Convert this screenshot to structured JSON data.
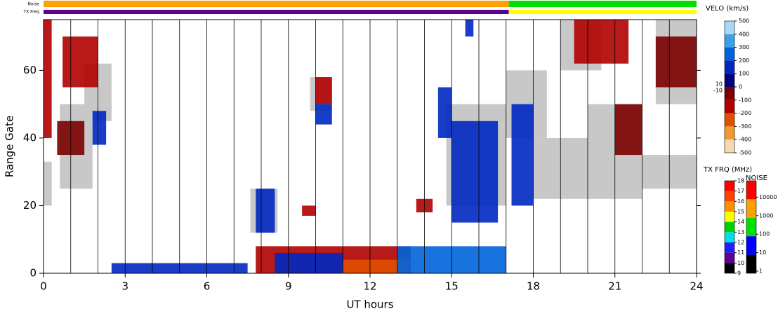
{
  "chart_data": {
    "type": "range-time",
    "xlabel": "UT hours",
    "ylabel": "Range Gate",
    "xlim": [
      0,
      24
    ],
    "ylim": [
      0,
      75
    ],
    "xticks": [
      0,
      3,
      6,
      9,
      12,
      15,
      18,
      21,
      24
    ],
    "yticks": [
      0,
      20,
      40,
      60
    ],
    "xgrid": [
      1,
      2,
      3,
      4,
      5,
      6,
      7,
      8,
      9,
      10,
      11,
      12,
      13,
      14,
      15,
      16,
      17,
      18,
      19,
      20,
      21,
      22,
      23
    ],
    "ground_scatter_color": "#c8c8c8",
    "ground_scatter": [
      {
        "t": [
          0,
          0.3
        ],
        "gate": [
          20,
          33
        ]
      },
      {
        "t": [
          0.6,
          1.8
        ],
        "gate": [
          25,
          50
        ]
      },
      {
        "t": [
          1.5,
          2.5
        ],
        "gate": [
          45,
          62
        ]
      },
      {
        "t": [
          7.6,
          8.6
        ],
        "gate": [
          12,
          25
        ]
      },
      {
        "t": [
          9.8,
          10.6
        ],
        "gate": [
          48,
          58
        ]
      },
      {
        "t": [
          14.8,
          17
        ],
        "gate": [
          20,
          50
        ]
      },
      {
        "t": [
          17,
          18.5
        ],
        "gate": [
          40,
          60
        ]
      },
      {
        "t": [
          18,
          22
        ],
        "gate": [
          22,
          40
        ]
      },
      {
        "t": [
          19,
          20.5
        ],
        "gate": [
          60,
          75
        ]
      },
      {
        "t": [
          20,
          22
        ],
        "gate": [
          30,
          50
        ]
      },
      {
        "t": [
          22,
          24
        ],
        "gate": [
          25,
          35
        ]
      },
      {
        "t": [
          22.5,
          24
        ],
        "gate": [
          50,
          75
        ]
      }
    ],
    "cells": [
      {
        "t": [
          0,
          0.3
        ],
        "gate": [
          40,
          75
        ],
        "v": -150
      },
      {
        "t": [
          0.7,
          2
        ],
        "gate": [
          55,
          70
        ],
        "v": -200
      },
      {
        "t": [
          0.5,
          1.5
        ],
        "gate": [
          35,
          45
        ],
        "v": -100
      },
      {
        "t": [
          7.8,
          13.5
        ],
        "gate": [
          0,
          8
        ],
        "v": -150
      },
      {
        "t": [
          11,
          13.5
        ],
        "gate": [
          0,
          4
        ],
        "v": -250
      },
      {
        "t": [
          9.5,
          10
        ],
        "gate": [
          17,
          20
        ],
        "v": -200
      },
      {
        "t": [
          13.7,
          14.3
        ],
        "gate": [
          18,
          22
        ],
        "v": -150
      },
      {
        "t": [
          21,
          22
        ],
        "gate": [
          35,
          50
        ],
        "v": -100
      },
      {
        "t": [
          22.5,
          24
        ],
        "gate": [
          55,
          70
        ],
        "v": -100
      },
      {
        "t": [
          19.5,
          21.5
        ],
        "gate": [
          62,
          75
        ],
        "v": -150
      },
      {
        "t": [
          10,
          10.6
        ],
        "gate": [
          50,
          58
        ],
        "v": -120
      },
      {
        "t": [
          1.8,
          2.3
        ],
        "gate": [
          38,
          48
        ],
        "v": 150
      },
      {
        "t": [
          2.5,
          7.5
        ],
        "gate": [
          0,
          3
        ],
        "v": 150
      },
      {
        "t": [
          8.5,
          11
        ],
        "gate": [
          0,
          6
        ],
        "v": 120
      },
      {
        "t": [
          13,
          17
        ],
        "gate": [
          0,
          8
        ],
        "v": 200
      },
      {
        "t": [
          15,
          16.7
        ],
        "gate": [
          15,
          45
        ],
        "v": 150
      },
      {
        "t": [
          17.2,
          18
        ],
        "gate": [
          20,
          50
        ],
        "v": 100
      },
      {
        "t": [
          14.5,
          15
        ],
        "gate": [
          40,
          55
        ],
        "v": 100
      },
      {
        "t": [
          10,
          10.6
        ],
        "gate": [
          44,
          50
        ],
        "v": 150
      },
      {
        "t": [
          7.8,
          8.5
        ],
        "gate": [
          12,
          25
        ],
        "v": 100
      },
      {
        "t": [
          15.5,
          15.8
        ],
        "gate": [
          70,
          75
        ],
        "v": 150
      }
    ],
    "velo_title": "VELO (km/s)",
    "velo_ticks": [
      500,
      400,
      300,
      200,
      100,
      0,
      -100,
      -200,
      -300,
      -400,
      -500
    ],
    "velo_colors": [
      "#a8d8f5",
      "#3aa0e8",
      "#0064dc",
      "#0028c0",
      "#000080",
      "#7a0000",
      "#b00000",
      "#e05000",
      "#f09a30",
      "#f8d8b0"
    ],
    "velo_side_ticks": [
      10,
      -10
    ],
    "freq_title": "TX FRQ (MHz)",
    "freq_ticks": [
      18,
      17,
      16,
      15,
      14,
      13,
      12,
      11,
      10,
      9
    ],
    "freq_colors": [
      "#ff0000",
      "#ff4000",
      "#ff9000",
      "#ffff00",
      "#00d000",
      "#00e0e0",
      "#2020ff",
      "#600090",
      "#000000"
    ],
    "noise_title": "NOISE",
    "noise_ticks": [
      10000,
      1000,
      100,
      10,
      1
    ],
    "noise_colors": [
      "#ff0000",
      "#ffa000",
      "#00e000",
      "#0000ff",
      "#000000"
    ],
    "noise_label": "Noise",
    "freq_label": "TX Freq",
    "noise_strip": [
      {
        "t": [
          0,
          17.1
        ],
        "level": 300
      },
      {
        "t": [
          17.1,
          24
        ],
        "level": 30
      }
    ],
    "freq_strip": [
      {
        "t": [
          0,
          17.1
        ],
        "freq": 10.5
      },
      {
        "t": [
          17.1,
          24
        ],
        "freq": 14.5
      }
    ]
  }
}
